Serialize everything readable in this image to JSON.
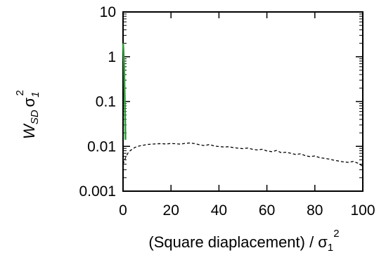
{
  "chart_data": {
    "type": "line",
    "xlabel": "(Square diaplacement) / σ₁²",
    "ylabel": "W_SD σ₁²",
    "xlabel_parts": {
      "main": "(Square diaplacement) / σ",
      "sub": "1",
      "sup": "2"
    },
    "ylabel_parts": {
      "w": "W",
      "w_sub": "SD",
      "sigma": "σ",
      "sigma_sub": "1",
      "sigma_sup": "2"
    },
    "xlim": [
      0,
      100
    ],
    "ylim": [
      0.001,
      10
    ],
    "yscale": "log",
    "grid": false,
    "x_ticks": [
      0,
      20,
      40,
      60,
      80,
      100
    ],
    "x_tick_labels": [
      "0",
      "20",
      "40",
      "60",
      "80",
      "100"
    ],
    "y_ticks": [
      0.001,
      0.01,
      0.1,
      1,
      10
    ],
    "y_tick_labels": [
      "0.001",
      "0.01",
      "0.1",
      "1",
      "10"
    ],
    "series": [
      {
        "style": "solid",
        "color": "#2e9e3a",
        "x": [
          0.0,
          0.1,
          0.2,
          0.3,
          0.4,
          0.5,
          0.6,
          0.7,
          0.8,
          0.9,
          1.0
        ],
        "y": [
          2.0,
          1.7,
          1.3,
          1.0,
          0.7,
          0.45,
          0.25,
          0.12,
          0.06,
          0.03,
          0.014
        ]
      },
      {
        "style": "dashed",
        "color": "#000000",
        "x": [
          0,
          1,
          2,
          3,
          4,
          5,
          6,
          8,
          10,
          12,
          14,
          16,
          18,
          20,
          22,
          24,
          26,
          28,
          30,
          32,
          34,
          36,
          38,
          40,
          42,
          44,
          46,
          48,
          50,
          52,
          54,
          56,
          58,
          60,
          62,
          64,
          66,
          68,
          70,
          72,
          74,
          76,
          78,
          80,
          82,
          84,
          86,
          88,
          90,
          92,
          94,
          96,
          98,
          100
        ],
        "y": [
          0.004,
          0.0055,
          0.007,
          0.008,
          0.0088,
          0.0095,
          0.01,
          0.0105,
          0.011,
          0.0112,
          0.0114,
          0.0115,
          0.0113,
          0.0116,
          0.0114,
          0.0112,
          0.0117,
          0.0119,
          0.0115,
          0.0108,
          0.0104,
          0.011,
          0.0102,
          0.0099,
          0.0097,
          0.0098,
          0.0094,
          0.0091,
          0.0089,
          0.0092,
          0.0086,
          0.0083,
          0.0086,
          0.0079,
          0.0076,
          0.0081,
          0.0072,
          0.0074,
          0.007,
          0.0066,
          0.0068,
          0.0062,
          0.0059,
          0.0061,
          0.0056,
          0.0054,
          0.0052,
          0.0049,
          0.0047,
          0.0045,
          0.0044,
          0.0046,
          0.0042,
          0.0036
        ]
      }
    ]
  }
}
